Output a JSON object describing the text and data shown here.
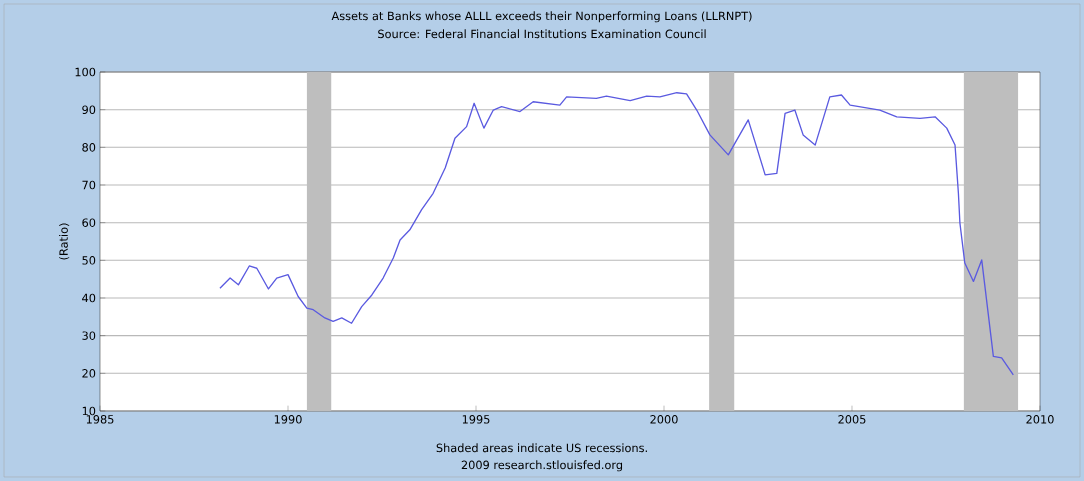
{
  "chart_data": {
    "type": "line",
    "title": "Assets at Banks whose ALLL exceeds their Nonperforming Loans (LLRNPT)",
    "subtitle": "Source: Federal Financial Institutions Examination Council",
    "ylabel": "(Ratio)",
    "annotations": [
      "Shaded areas indicate US recessions.",
      "2009 research.stlouisfed.org"
    ],
    "x": [
      1988.19,
      1988.46,
      1988.68,
      1988.97,
      1989.17,
      1989.48,
      1989.7,
      1990.0,
      1990.27,
      1990.5,
      1990.67,
      1990.98,
      1991.2,
      1991.43,
      1991.69,
      1991.96,
      1992.23,
      1992.53,
      1992.8,
      1992.98,
      1993.24,
      1993.55,
      1993.86,
      1994.18,
      1994.44,
      1994.75,
      1994.95,
      1995.21,
      1995.46,
      1995.68,
      1996.17,
      1996.52,
      1997.23,
      1997.41,
      1998.2,
      1998.47,
      1999.1,
      1999.54,
      1999.89,
      2000.34,
      2000.6,
      2000.87,
      2001.22,
      2001.71,
      2002.24,
      2002.69,
      2003.0,
      2003.22,
      2003.48,
      2003.7,
      2004.02,
      2004.41,
      2004.72,
      2004.95,
      2005.74,
      2006.19,
      2006.81,
      2007.21,
      2007.52,
      2007.74,
      2007.83,
      2007.87,
      2008.0,
      2008.23,
      2008.45,
      2008.76,
      2008.98,
      2009.29
    ],
    "series": [
      {
        "color": "#5a5ae0",
        "values": [
          42.6,
          45.3,
          43.5,
          48.5,
          47.9,
          42.4,
          45.3,
          46.2,
          40.4,
          37.3,
          36.9,
          34.7,
          33.8,
          34.7,
          33.3,
          37.7,
          40.8,
          45.3,
          50.6,
          55.4,
          58.1,
          63.4,
          67.8,
          74.5,
          82.4,
          85.5,
          91.7,
          85.1,
          89.9,
          90.8,
          89.5,
          92.1,
          91.2,
          93.4,
          93.0,
          93.6,
          92.4,
          93.6,
          93.4,
          94.5,
          94.2,
          89.9,
          83.3,
          78.0,
          87.3,
          72.7,
          73.1,
          89.0,
          89.9,
          83.3,
          80.6,
          93.4,
          93.9,
          91.2,
          89.9,
          88.1,
          87.7,
          88.1,
          85.1,
          80.6,
          67.8,
          59.9,
          49.3,
          44.4,
          50.1,
          24.5,
          24.1,
          19.6
        ]
      }
    ],
    "xlim": [
      1985,
      2010
    ],
    "xticks": [
      1985,
      1990,
      1995,
      2000,
      2005,
      2010
    ],
    "ylim": [
      10,
      100
    ],
    "yticks": [
      10,
      20,
      30,
      40,
      50,
      60,
      70,
      80,
      90,
      100
    ],
    "grid": "y",
    "bands": [
      {
        "axis": "x",
        "from": 1990.5,
        "to": 1991.15,
        "color": "#bebebe"
      },
      {
        "axis": "x",
        "from": 2001.2,
        "to": 2001.87,
        "color": "#bebebe"
      },
      {
        "axis": "x",
        "from": 2007.97,
        "to": 2009.42,
        "color": "#bebebe"
      }
    ]
  }
}
